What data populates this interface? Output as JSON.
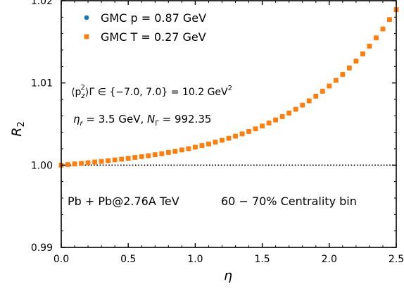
{
  "chart_data": {
    "type": "scatter",
    "xlabel": "η",
    "ylabel": "R",
    "ylabel_sub": "2",
    "xlim": [
      0.0,
      2.5
    ],
    "ylim": [
      0.99,
      1.02
    ],
    "x_ticks": [
      0.0,
      0.5,
      1.0,
      1.5,
      2.0,
      2.5
    ],
    "x_tick_labels": [
      "0.0",
      "0.5",
      "1.0",
      "1.5",
      "2.0",
      "2.5"
    ],
    "y_ticks": [
      0.99,
      1.0,
      1.01,
      1.02
    ],
    "y_tick_labels": [
      "0.99",
      "1.00",
      "1.01",
      "1.02"
    ],
    "reference_line": 1.0,
    "grid": false,
    "legend_position": "top-left",
    "series": [
      {
        "name": "GMC p = 0.87 GeV",
        "marker": "circle",
        "color": "#1f77b4",
        "x": [
          0.0,
          0.05,
          0.1,
          0.15,
          0.2,
          0.25,
          0.3,
          0.35,
          0.4,
          0.45,
          0.5,
          0.55,
          0.6,
          0.65,
          0.7,
          0.75,
          0.8,
          0.85,
          0.9,
          0.95,
          1.0,
          1.05,
          1.1,
          1.15,
          1.2,
          1.25,
          1.3,
          1.35,
          1.4,
          1.45,
          1.5,
          1.55,
          1.6,
          1.65,
          1.7,
          1.75,
          1.8,
          1.85,
          1.9,
          1.95,
          2.0,
          2.05,
          2.1,
          2.15,
          2.2,
          2.25,
          2.3,
          2.35,
          2.4,
          2.45,
          2.5
        ],
        "y": [
          1.0,
          1.00007,
          1.00015,
          1.00022,
          1.0003,
          1.00038,
          1.00046,
          1.00055,
          1.00064,
          1.00073,
          1.00083,
          1.00093,
          1.00104,
          1.00115,
          1.00127,
          1.0014,
          1.00154,
          1.00169,
          1.00185,
          1.00201,
          1.00219,
          1.00238,
          1.00258,
          1.0028,
          1.00303,
          1.00327,
          1.00353,
          1.00381,
          1.0041,
          1.00442,
          1.00476,
          1.00512,
          1.0055,
          1.00591,
          1.00634,
          1.0068,
          1.0073,
          1.00783,
          1.00839,
          1.00899,
          1.00963,
          1.01031,
          1.01104,
          1.01182,
          1.01265,
          1.01353,
          1.01448,
          1.01548,
          1.01656,
          1.01771,
          1.01892
        ]
      },
      {
        "name": "GMC T = 0.27 GeV",
        "marker": "square",
        "color": "#ff7f0e",
        "x": [
          0.0,
          0.05,
          0.1,
          0.15,
          0.2,
          0.25,
          0.3,
          0.35,
          0.4,
          0.45,
          0.5,
          0.55,
          0.6,
          0.65,
          0.7,
          0.75,
          0.8,
          0.85,
          0.9,
          0.95,
          1.0,
          1.05,
          1.1,
          1.15,
          1.2,
          1.25,
          1.3,
          1.35,
          1.4,
          1.45,
          1.5,
          1.55,
          1.6,
          1.65,
          1.7,
          1.75,
          1.8,
          1.85,
          1.9,
          1.95,
          2.0,
          2.05,
          2.1,
          2.15,
          2.2,
          2.25,
          2.3,
          2.35,
          2.4,
          2.45,
          2.5
        ],
        "y": [
          1.0,
          1.00007,
          1.00015,
          1.00022,
          1.0003,
          1.00038,
          1.00046,
          1.00055,
          1.00064,
          1.00073,
          1.00083,
          1.00093,
          1.00104,
          1.00115,
          1.00127,
          1.0014,
          1.00154,
          1.00169,
          1.00185,
          1.00201,
          1.00219,
          1.00238,
          1.00258,
          1.0028,
          1.00303,
          1.00327,
          1.00353,
          1.00381,
          1.0041,
          1.00442,
          1.00476,
          1.00512,
          1.0055,
          1.00591,
          1.00634,
          1.0068,
          1.0073,
          1.00783,
          1.00839,
          1.00899,
          1.00963,
          1.01031,
          1.01104,
          1.01182,
          1.01265,
          1.01353,
          1.01448,
          1.01548,
          1.01656,
          1.01771,
          1.01892
        ]
      }
    ],
    "annotations": {
      "pz_label": "⟨p",
      "pz_sub": "z",
      "pz_sup": "2",
      "pz_range": "⟩Γ ∈ {−7.0, 7.0}",
      "pz_value": " = 10.2 GeV",
      "pz_value_sup": "2",
      "eta_r_symbol": "η",
      "eta_r_sub": "r",
      "eta_r_value": " = 3.5 GeV, ",
      "n_symbol": "N",
      "n_sub": "Γ",
      "n_value": " = 992.35",
      "system": "Pb + Pb@2.76A TeV",
      "centrality": "60 − 70% Centrality bin"
    }
  }
}
